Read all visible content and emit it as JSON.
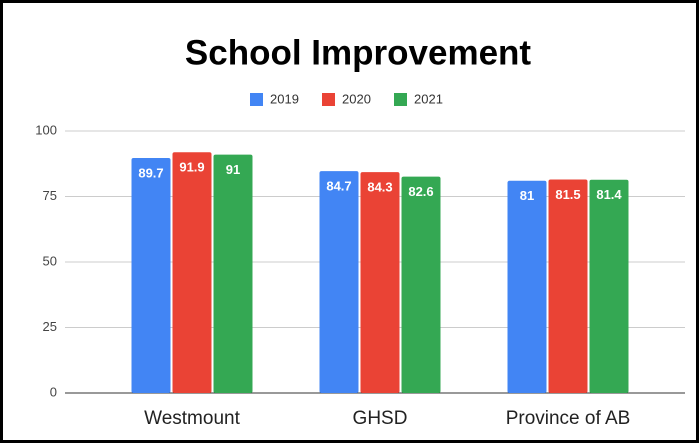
{
  "chart_data": {
    "type": "bar",
    "title": "School Improvement",
    "categories": [
      "Westmount",
      "GHSD",
      "Province of AB"
    ],
    "series": [
      {
        "name": "2019",
        "color": "#4285f4",
        "values": [
          89.7,
          84.7,
          81
        ]
      },
      {
        "name": "2020",
        "color": "#ea4335",
        "values": [
          91.9,
          84.3,
          81.5
        ]
      },
      {
        "name": "2021",
        "color": "#34a853",
        "values": [
          91,
          82.6,
          81.4
        ]
      }
    ],
    "ylim": [
      0,
      100
    ],
    "yticks": [
      0,
      25,
      50,
      75,
      100
    ],
    "grid": true,
    "legend": "top"
  }
}
